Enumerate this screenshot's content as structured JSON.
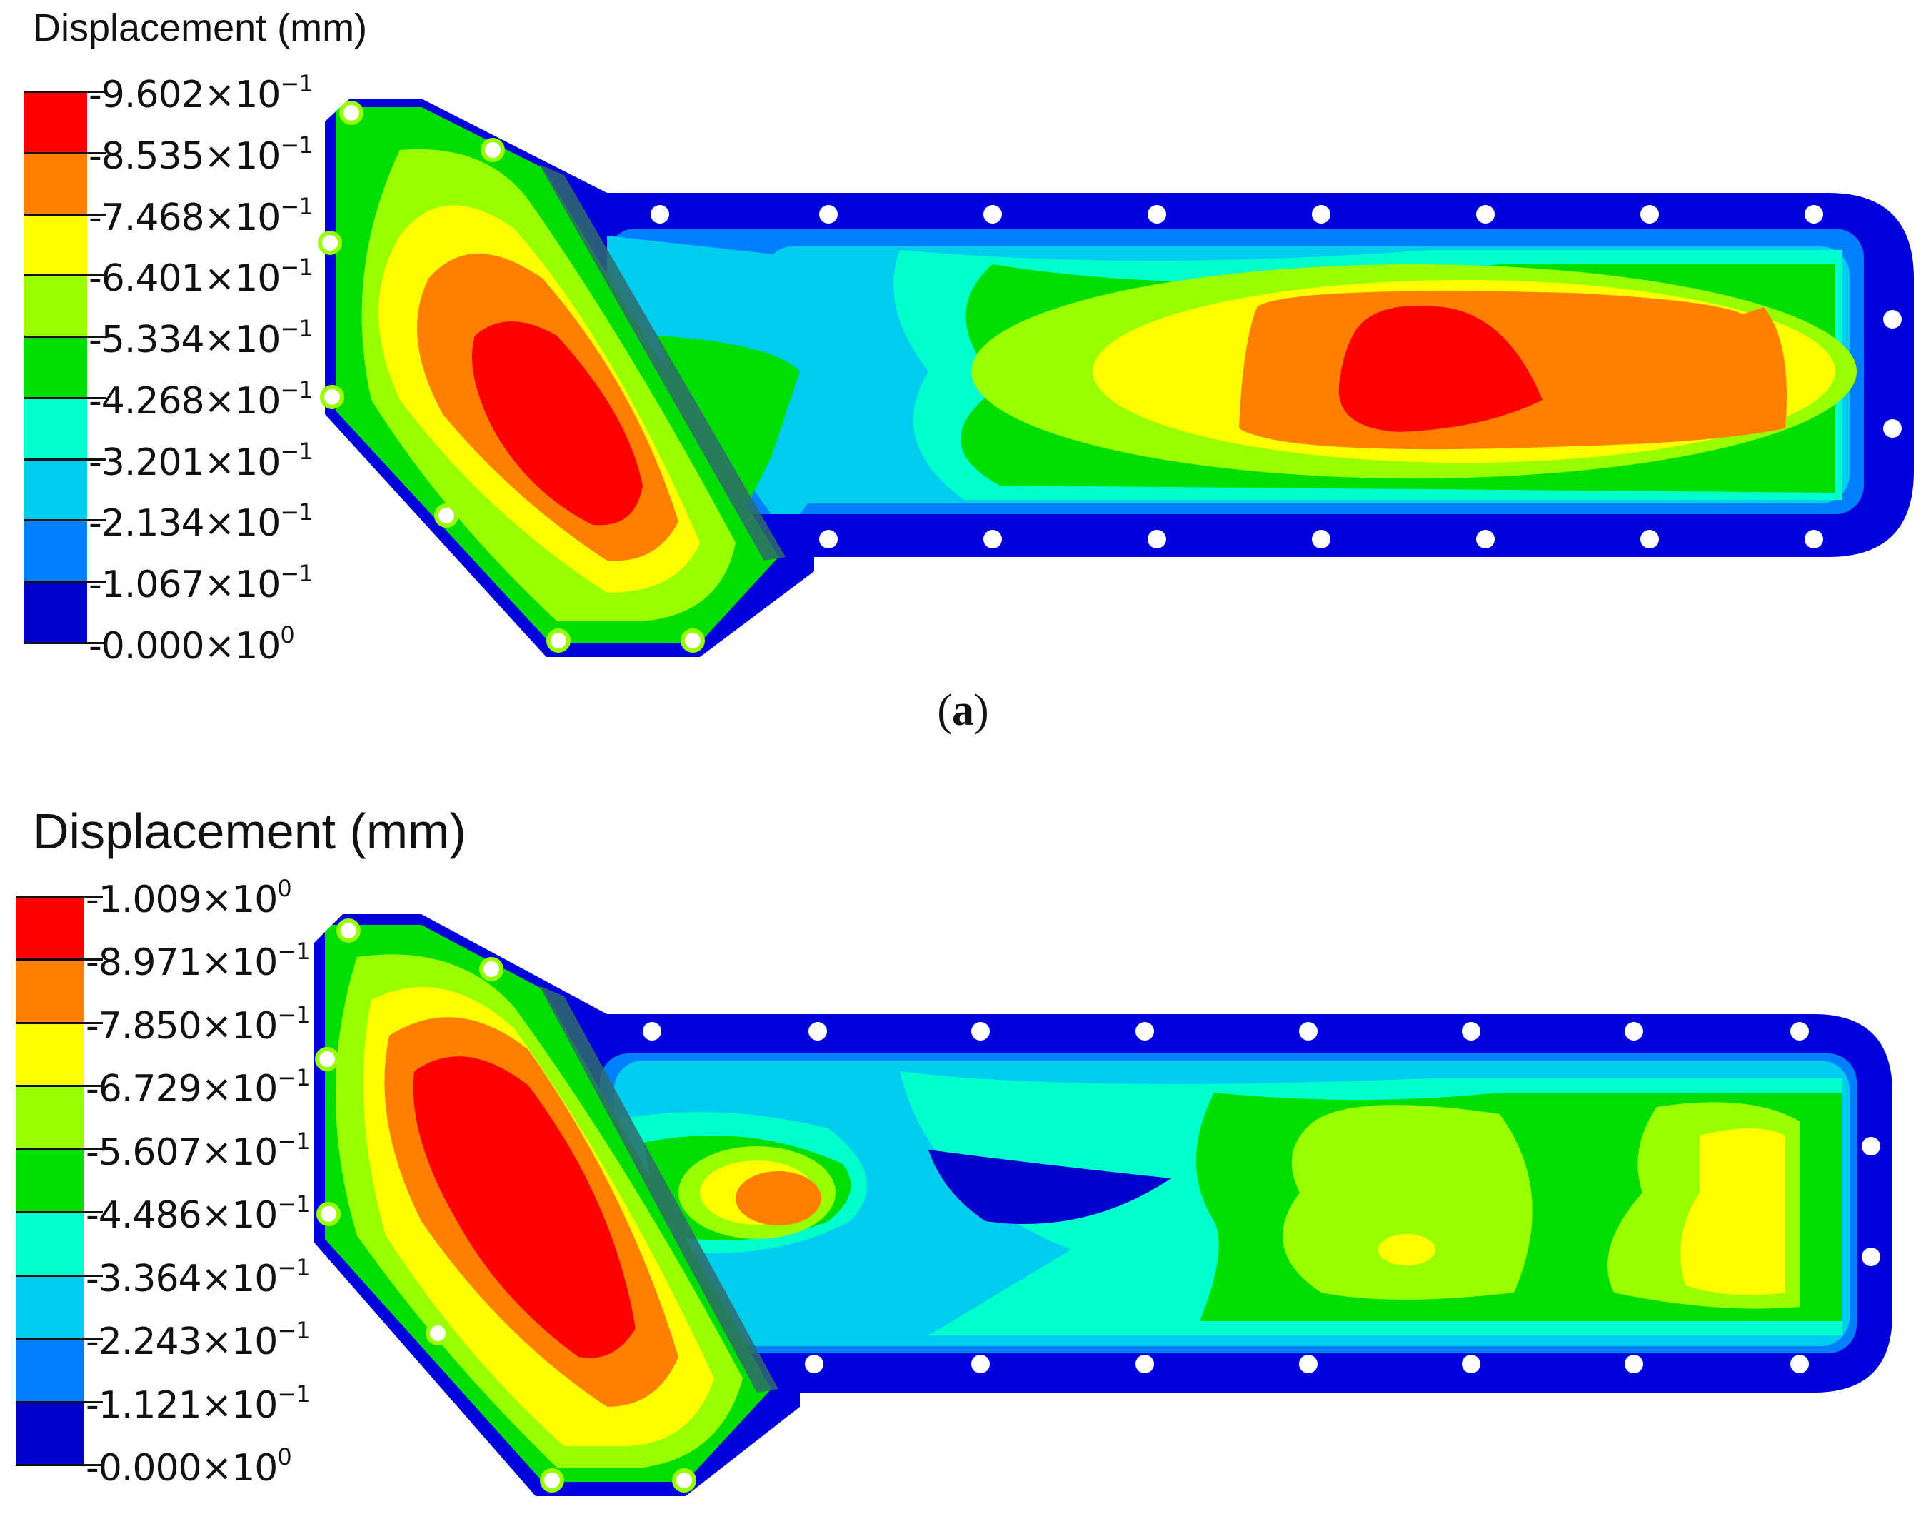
{
  "panels": [
    {
      "id": "a",
      "title": "Displacement (mm)",
      "caption_open": "(",
      "caption_letter": "a",
      "caption_close": ")",
      "legend": [
        {
          "mantissa": "9.602",
          "exp": "−1",
          "color": "#ff0000"
        },
        {
          "mantissa": "8.535",
          "exp": "−1",
          "color": "#ff8000"
        },
        {
          "mantissa": "7.468",
          "exp": "−1",
          "color": "#ffff00"
        },
        {
          "mantissa": "6.401",
          "exp": "−1",
          "color": "#99ff00"
        },
        {
          "mantissa": "5.334",
          "exp": "−1",
          "color": "#00dd00"
        },
        {
          "mantissa": "4.268",
          "exp": "−1",
          "color": "#00ffcc"
        },
        {
          "mantissa": "3.201",
          "exp": "−1",
          "color": "#00ccee"
        },
        {
          "mantissa": "2.134",
          "exp": "−1",
          "color": "#0080ff"
        },
        {
          "mantissa": "1.067",
          "exp": "−1",
          "color": "#0000cc"
        },
        {
          "mantissa": "0.000",
          "exp": "0",
          "color": null
        }
      ]
    },
    {
      "id": "b",
      "title": "Displacement (mm)",
      "legend": [
        {
          "mantissa": "1.009",
          "exp": "0",
          "color": "#ff0000"
        },
        {
          "mantissa": "8.971",
          "exp": "−1",
          "color": "#ff8000"
        },
        {
          "mantissa": "7.850",
          "exp": "−1",
          "color": "#ffff00"
        },
        {
          "mantissa": "6.729",
          "exp": "−1",
          "color": "#99ff00"
        },
        {
          "mantissa": "5.607",
          "exp": "−1",
          "color": "#00dd00"
        },
        {
          "mantissa": "4.486",
          "exp": "−1",
          "color": "#00ffcc"
        },
        {
          "mantissa": "3.364",
          "exp": "−1",
          "color": "#00ccee"
        },
        {
          "mantissa": "2.243",
          "exp": "−1",
          "color": "#0080ff"
        },
        {
          "mantissa": "1.121",
          "exp": "−1",
          "color": "#0000cc"
        },
        {
          "mantissa": "0.000",
          "exp": "0",
          "color": null
        }
      ]
    }
  ],
  "colors": {
    "blue": "#0000dd",
    "mid_blue": "#0080ff",
    "cyan": "#00ccee",
    "aqua": "#00ffcc",
    "green": "#00dd00",
    "yellow_green": "#99ff00",
    "yellow": "#ffff00",
    "orange": "#ff8000",
    "red": "#ff0000",
    "rib": "#2f6b6b"
  },
  "times_sign": "×"
}
